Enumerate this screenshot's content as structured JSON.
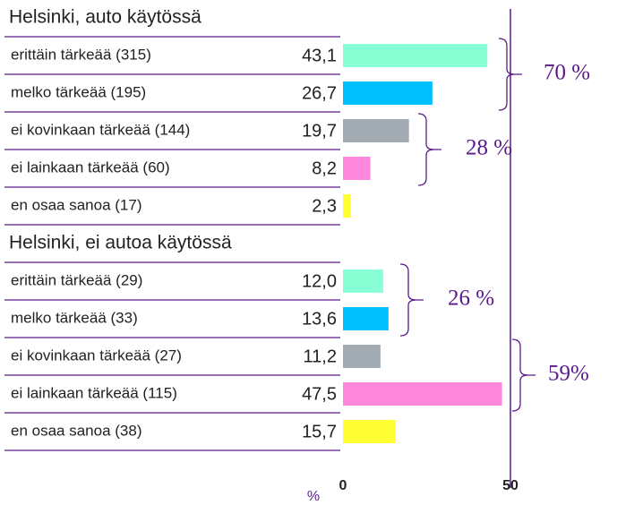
{
  "chart_data": {
    "type": "bar",
    "x_label": "%",
    "xlim": [
      0,
      50
    ],
    "xticks": [
      0,
      50
    ],
    "grid": false,
    "colors": [
      "#88ffd4",
      "#00bfff",
      "#a3abb3",
      "#ff88dd",
      "#ffff33"
    ],
    "groups": [
      {
        "title": "Helsinki, auto käytössä",
        "categories": [
          "erittäin tärkeää (315)",
          "melko tärkeää (195)",
          "ei kovinkaan tärkeää (144)",
          "ei lainkaan tärkeää (60)",
          "en osaa sanoa (17)"
        ],
        "values": [
          43.1,
          26.7,
          19.7,
          8.2,
          2.3
        ],
        "value_labels": [
          "43,1",
          "26,7",
          "19,7",
          "8,2",
          "2,3"
        ]
      },
      {
        "title": "Helsinki, ei autoa käytössä",
        "categories": [
          "erittäin tärkeää (29)",
          "melko tärkeää (33)",
          "ei kovinkaan tärkeää (27)",
          "ei lainkaan tärkeää (115)",
          "en osaa sanoa (38)"
        ],
        "values": [
          12.0,
          13.6,
          11.2,
          47.5,
          15.7
        ],
        "value_labels": [
          "12,0",
          "13,6",
          "11,2",
          "47,5",
          "15,7"
        ]
      }
    ],
    "annotations": [
      "70 %",
      "28 %",
      "26 %",
      "59%"
    ]
  }
}
